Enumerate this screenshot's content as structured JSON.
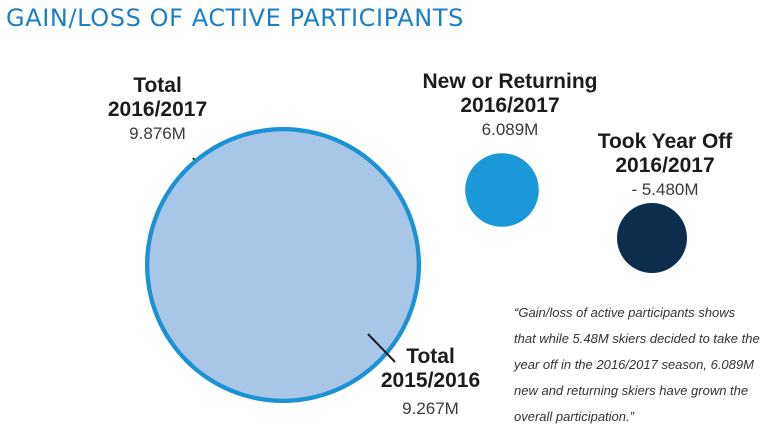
{
  "page": {
    "title": "GAIN/LOSS OF ACTIVE PARTICIPANTS"
  },
  "colors": {
    "title": "#1a7fc4",
    "total_2016_2017": "#1a92d4",
    "total_2015_2016": "#a8c6e8",
    "new_or_returning": "#1b98d8",
    "took_year_off": "#0d2d4f"
  },
  "chart_data": {
    "type": "bubble",
    "unit": "M",
    "bubbles": [
      {
        "name_line1": "Total",
        "name_line2": "2016/2017",
        "value": 9.876,
        "display": "9.876M"
      },
      {
        "name_line1": "Total",
        "name_line2": "2015/2016",
        "value": 9.267,
        "display": "9.267M"
      },
      {
        "name_line1": "New or Returning",
        "name_line2": "2016/2017",
        "value": 6.089,
        "display": "6.089M"
      },
      {
        "name_line1": "Took Year Off",
        "name_line2": "2016/2017",
        "value": -5.48,
        "display": "- 5.480M"
      }
    ]
  },
  "quote": {
    "line1": "“Gain/loss of active participants shows",
    "line2": "that while 5.48M skiers decided to take the",
    "line3": "year off in the 2016/2017 season,  6.089M",
    "line4": "new and returning skiers have grown the",
    "line5": "overall participation.”"
  }
}
